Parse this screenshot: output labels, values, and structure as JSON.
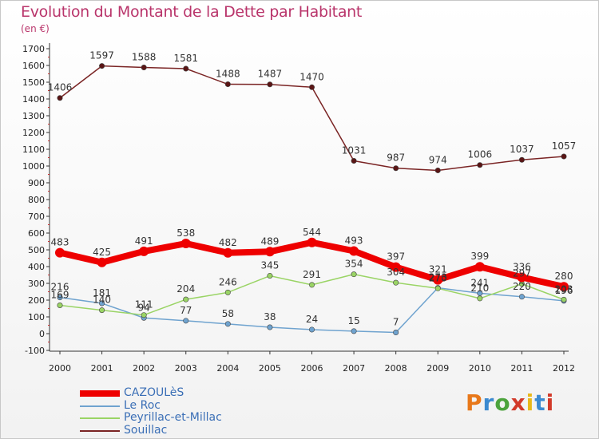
{
  "title": "Evolution du Montant de la Dette par Habitant",
  "unit": "(en €)",
  "logo": {
    "letters": [
      "P",
      "r",
      "o",
      "x",
      "i",
      "t",
      "i"
    ],
    "colors": [
      "#e8781a",
      "#3c8ad0",
      "#4ca33c",
      "#d23a2a",
      "#e8b81a",
      "#3c8ad0",
      "#d23a2a"
    ]
  },
  "chart_data": {
    "type": "line",
    "title": "Evolution du Montant de la Dette par Habitant",
    "ylabel": "(en €)",
    "xlabel": "",
    "ylim": [
      -100,
      1700
    ],
    "yticks": [
      -100,
      0,
      100,
      200,
      300,
      400,
      500,
      600,
      700,
      800,
      900,
      1000,
      1100,
      1200,
      1300,
      1400,
      1500,
      1600,
      1700
    ],
    "x": [
      "2000",
      "2001",
      "2002",
      "2003",
      "2004",
      "2005",
      "2006",
      "2007",
      "2008",
      "2009",
      "2010",
      "2011",
      "2012"
    ],
    "legend_position": "bottom-left",
    "grid": false,
    "series": [
      {
        "name": "CAZOULèS",
        "color": "#ee0000",
        "width": 8,
        "values": [
          483,
          425,
          491,
          538,
          482,
          489,
          544,
          493,
          397,
          321,
          399,
          336,
          280
        ]
      },
      {
        "name": "Le Roc",
        "color": "#6fa3cf",
        "width": 1.5,
        "values": [
          216,
          181,
          94,
          77,
          58,
          38,
          24,
          15,
          7,
          273,
          241,
          220,
          196
        ]
      },
      {
        "name": "Peyrillac-et-Millac",
        "color": "#9ad465",
        "width": 1.5,
        "values": [
          169,
          140,
          111,
          204,
          246,
          345,
          291,
          354,
          304,
          270,
          210,
          297,
          203
        ]
      },
      {
        "name": "Souillac",
        "color": "#7a2424",
        "width": 1.5,
        "values": [
          1406,
          1597,
          1588,
          1581,
          1488,
          1487,
          1470,
          1031,
          987,
          974,
          1006,
          1037,
          1057
        ]
      }
    ]
  }
}
